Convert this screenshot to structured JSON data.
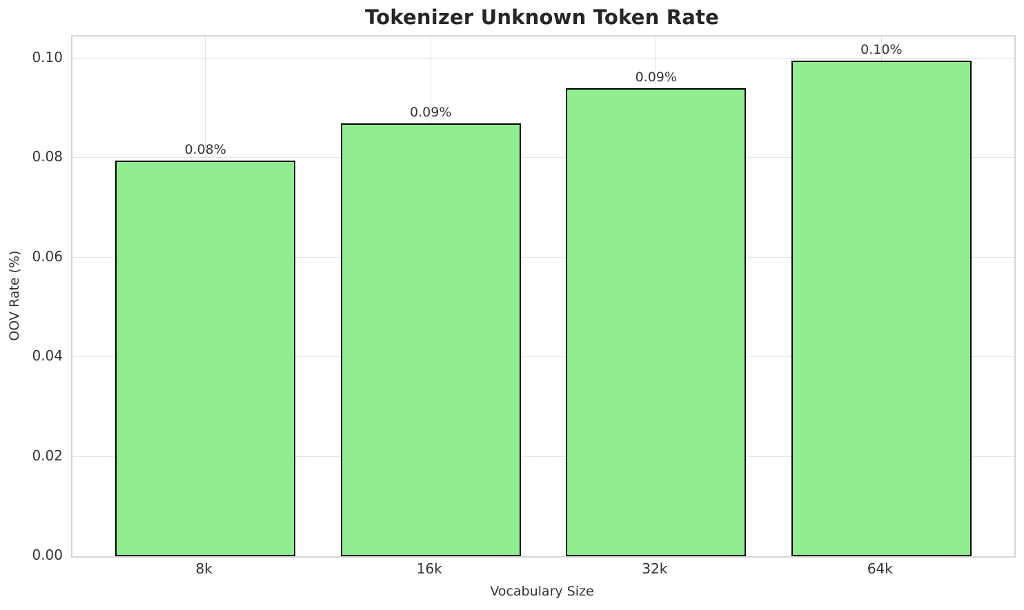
{
  "chart_data": {
    "type": "bar",
    "title": "Tokenizer Unknown Token Rate",
    "xlabel": "Vocabulary Size",
    "ylabel": "OOV Rate (%)",
    "categories": [
      "8k",
      "16k",
      "32k",
      "64k"
    ],
    "values": [
      0.0795,
      0.087,
      0.094,
      0.0995
    ],
    "bar_labels": [
      "0.08%",
      "0.09%",
      "0.09%",
      "0.10%"
    ],
    "yticks": [
      {
        "value": 0.0,
        "label": "0.00"
      },
      {
        "value": 0.02,
        "label": "0.02"
      },
      {
        "value": 0.04,
        "label": "0.04"
      },
      {
        "value": 0.06,
        "label": "0.06"
      },
      {
        "value": 0.08,
        "label": "0.08"
      },
      {
        "value": 0.1,
        "label": "0.10"
      }
    ],
    "ylim": [
      0,
      0.1044
    ],
    "bar_color": "#90EE90",
    "bar_edge_color": "#000000",
    "grid": true,
    "legend": "none"
  }
}
